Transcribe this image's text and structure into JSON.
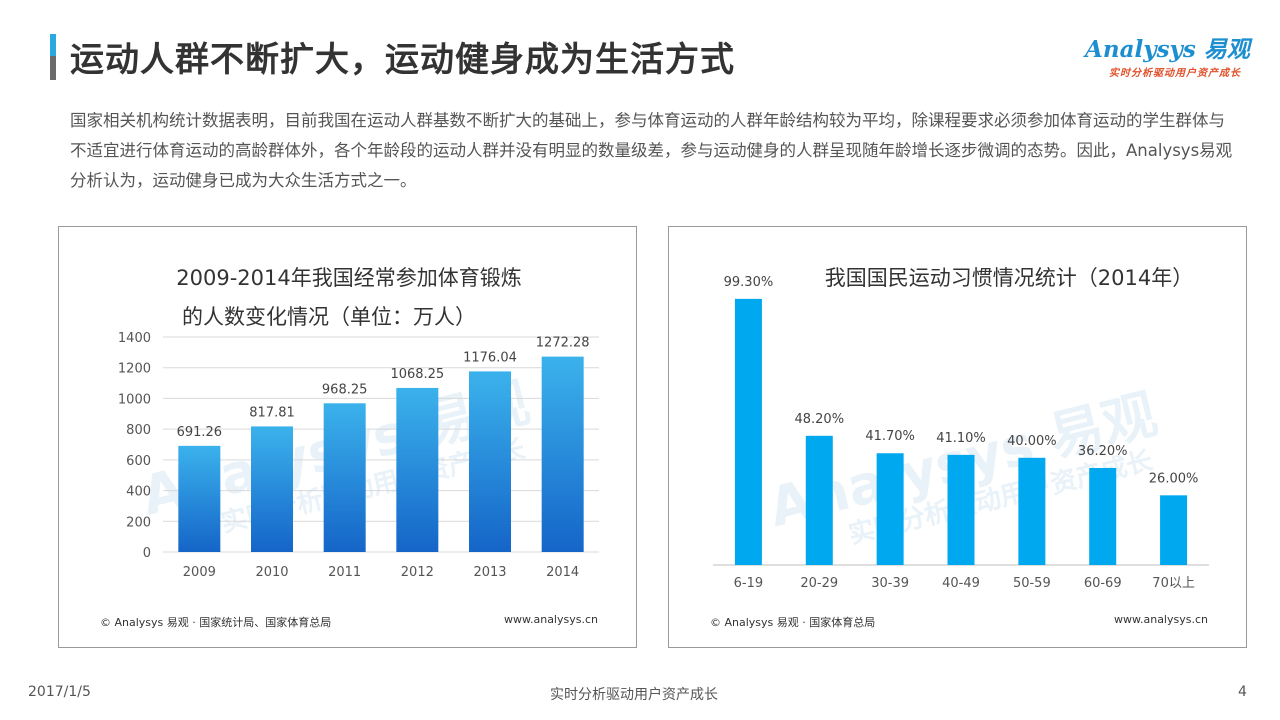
{
  "header": {
    "title": "运动人群不断扩大，运动健身成为生活方式",
    "logo_main": "Analysys",
    "logo_brand": "易观",
    "logo_slogan": "实时分析驱动用户资产成长"
  },
  "intro": "国家相关机构统计数据表明，目前我国在运动人群基数不断扩大的基础上，参与体育运动的人群年龄结构较为平均，除课程要求必须参加体育运动的学生群体与不适宜进行体育运动的高龄群体外，各个年龄段的运动人群并没有明显的数量级差，参与运动健身的人群呈现随年龄增长逐步微调的态势。因此，Analysys易观分析认为，运动健身已成为大众生活方式之一。",
  "chart_data": [
    {
      "type": "bar",
      "title": "2009-2014年我国经常参加体育锻炼的人数变化情况（单位：万人）",
      "title_lines": [
        "2009-2014年我国经常参加体育锻炼",
        "的人数变化情况（单位：万人）"
      ],
      "categories": [
        "2009",
        "2010",
        "2011",
        "2012",
        "2013",
        "2014"
      ],
      "values": [
        691.26,
        817.81,
        968.25,
        1068.25,
        1176.04,
        1272.28
      ],
      "value_labels": [
        "691.26",
        "817.81",
        "968.25",
        "1068.25",
        "1176.04",
        "1272.28"
      ],
      "ylim": [
        0,
        1400
      ],
      "yticks": [
        0,
        200,
        400,
        600,
        800,
        1000,
        1200,
        1400
      ],
      "grid": true,
      "xlabel": "",
      "ylabel": "",
      "source": "© Analysys 易观 · 国家统计局、国家体育总局",
      "website": "www.analysys.cn",
      "colors": {
        "bar_top": "#3bb2ec",
        "bar_bottom": "#1565c8"
      }
    },
    {
      "type": "bar",
      "title": "我国国民运动习惯情况统计（2014年）",
      "categories": [
        "6-19",
        "20-29",
        "30-39",
        "40-49",
        "50-59",
        "60-69",
        "70以上"
      ],
      "values": [
        99.3,
        48.2,
        41.7,
        41.1,
        40.0,
        36.2,
        26.0
      ],
      "value_labels": [
        "99.30%",
        "48.20%",
        "41.70%",
        "41.10%",
        "40.00%",
        "36.20%",
        "26.00%"
      ],
      "ylim": [
        0,
        100
      ],
      "grid": false,
      "xlabel": "",
      "ylabel": "",
      "source": "© Analysys 易观 · 国家体育总局",
      "website": "www.analysys.cn",
      "colors": {
        "bar": "#00a8f0"
      }
    }
  ],
  "footer": {
    "date": "2017/1/5",
    "slogan": "实时分析驱动用户资产成长",
    "page_number": "4"
  },
  "colors": {
    "accent": "#2aa9e0",
    "title_text": "#333333"
  },
  "icons": {
    "logo": "analysys-logo"
  }
}
